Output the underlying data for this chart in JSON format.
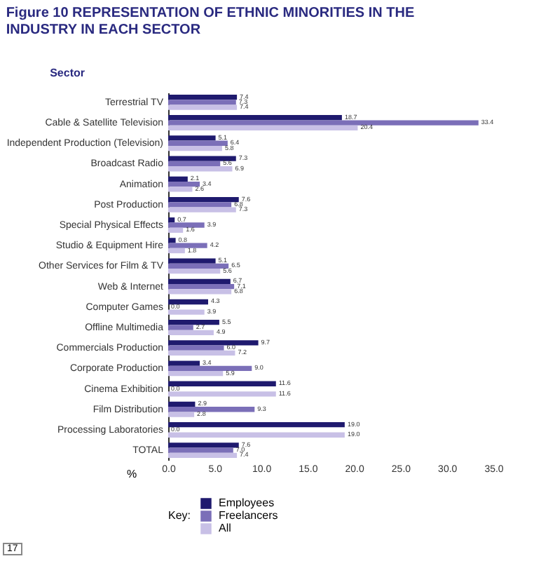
{
  "chart_data": {
    "type": "bar",
    "orientation": "horizontal",
    "title": "Figure 10 REPRESENTATION OF ETHNIC MINORITIES IN THE INDUSTRY IN EACH SECTOR",
    "ylabel": "Sector",
    "xlabel": "%",
    "legend_title": "Key:",
    "legend": "bottom",
    "grid": false,
    "categories": [
      "Terrestrial TV",
      "Cable & Satellite Television",
      "Independent Production (Television)",
      "Broadcast Radio",
      "Animation",
      "Post Production",
      "Special Physical Effects",
      "Studio & Equipment Hire",
      "Other Services for Film & TV",
      "Web & Internet",
      "Computer Games",
      "Offline Multimedia",
      "Commercials Production",
      "Corporate Production",
      "Cinema Exhibition",
      "Film Distribution",
      "Processing Laboratories",
      "TOTAL"
    ],
    "series": [
      {
        "name": "Employees",
        "color": "#1f1a6e",
        "values": [
          7.4,
          18.7,
          5.1,
          7.3,
          2.1,
          7.6,
          0.7,
          0.8,
          5.1,
          6.7,
          4.3,
          5.5,
          9.7,
          3.4,
          11.6,
          2.9,
          19.0,
          7.6
        ],
        "value_labels": [
          "7.4",
          "18.7",
          "5.1",
          "7.3",
          "2.1",
          "7.6",
          "0.7",
          "0.8",
          "5.1",
          "6.7",
          "4.3",
          "5.5",
          "9.7",
          "3.4",
          "11.6",
          "2.9",
          "19.0",
          "7.6"
        ]
      },
      {
        "name": "Freelancers",
        "color": "#7b6fb8",
        "values": [
          7.3,
          33.4,
          6.4,
          5.6,
          3.4,
          6.8,
          3.9,
          4.2,
          6.5,
          7.1,
          0.0,
          2.7,
          6.0,
          9.0,
          0.0,
          9.3,
          0.0,
          7.0
        ],
        "value_labels": [
          "7.3",
          "33.4",
          "6.4",
          "5.6",
          "3.4",
          "6.8",
          "3.9",
          "4.2",
          "6.5",
          "7.1",
          "0.0",
          "2.7",
          "6.0",
          "9.0",
          "0.0",
          "9.3",
          "0.0",
          "7.0"
        ]
      },
      {
        "name": "All",
        "color": "#c8c0e6",
        "values": [
          7.4,
          20.4,
          5.8,
          6.9,
          2.6,
          7.3,
          1.6,
          1.8,
          5.6,
          6.8,
          3.9,
          4.9,
          7.2,
          5.9,
          11.6,
          2.8,
          19.0,
          7.4
        ],
        "value_labels": [
          "7.4",
          "20.4",
          "5.8",
          "6.9",
          "2.6",
          "7.3",
          "1.6",
          "1.8",
          "5.6",
          "6.8",
          "3.9",
          "4.9",
          "7.2",
          "5.9",
          "11.6",
          "2.8",
          "19.0",
          "7.4"
        ]
      }
    ],
    "xlim": [
      0,
      35
    ],
    "xticks": [
      {
        "value": 0,
        "label": "0.0"
      },
      {
        "value": 5,
        "label": "5.0"
      },
      {
        "value": 10,
        "label": "10.0"
      },
      {
        "value": 15,
        "label": "15.0"
      },
      {
        "value": 20,
        "label": "20.0"
      },
      {
        "value": 25,
        "label": "25.0"
      },
      {
        "value": 30,
        "label": "30.0"
      },
      {
        "value": 35,
        "label": "35.0"
      }
    ],
    "annotations": [
      "17"
    ]
  }
}
